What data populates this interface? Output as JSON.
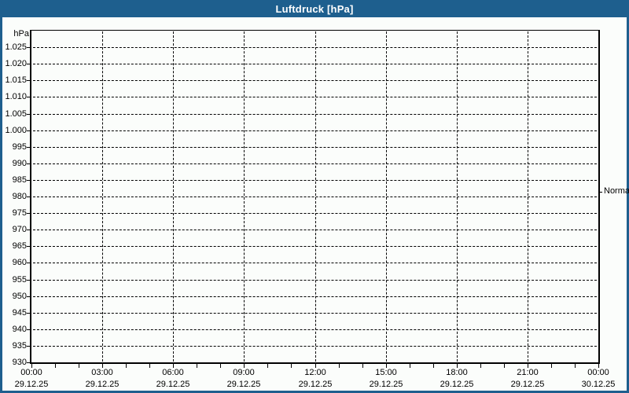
{
  "window": {
    "title": "Luftdruck [hPa]"
  },
  "colors": {
    "titlebar_bg": "#1e5f8e",
    "titlebar_text": "#ffffff",
    "content_bg": "#fbfdfb",
    "axis": "#000000",
    "grid": "#000000",
    "label_text": "#000000"
  },
  "chart_data": {
    "type": "line",
    "title": "Luftdruck [hPa]",
    "y_unit": "hPa",
    "ylim": [
      930,
      1030
    ],
    "ytick_step": 5,
    "grid": "dashed",
    "legend_position": "none",
    "series": [],
    "yticks": [
      {
        "v": 1025,
        "label": "1.025"
      },
      {
        "v": 1020,
        "label": "1.020"
      },
      {
        "v": 1015,
        "label": "1.015"
      },
      {
        "v": 1010,
        "label": "1.010"
      },
      {
        "v": 1005,
        "label": "1.005"
      },
      {
        "v": 1000,
        "label": "1.000"
      },
      {
        "v": 995,
        "label": "995"
      },
      {
        "v": 990,
        "label": "990"
      },
      {
        "v": 985,
        "label": "985"
      },
      {
        "v": 980,
        "label": "980"
      },
      {
        "v": 975,
        "label": "975"
      },
      {
        "v": 970,
        "label": "970"
      },
      {
        "v": 965,
        "label": "965"
      },
      {
        "v": 960,
        "label": "960"
      },
      {
        "v": 955,
        "label": "955"
      },
      {
        "v": 950,
        "label": "950"
      },
      {
        "v": 945,
        "label": "945"
      },
      {
        "v": 940,
        "label": "940"
      },
      {
        "v": 935,
        "label": "935"
      },
      {
        "v": 930,
        "label": "930"
      }
    ],
    "xticks": [
      {
        "time": "00:00",
        "date": "29.12.25"
      },
      {
        "time": "03:00",
        "date": "29.12.25"
      },
      {
        "time": "06:00",
        "date": "29.12.25"
      },
      {
        "time": "09:00",
        "date": "29.12.25"
      },
      {
        "time": "12:00",
        "date": "29.12.25"
      },
      {
        "time": "15:00",
        "date": "29.12.25"
      },
      {
        "time": "18:00",
        "date": "29.12.25"
      },
      {
        "time": "21:00",
        "date": "29.12.25"
      },
      {
        "time": "00:00",
        "date": "30.12.25"
      }
    ],
    "x_range_hours": 24,
    "x_major_tick_hours": 3,
    "x_minor_tick_hours": 1,
    "annotations": [
      {
        "label": "Normal",
        "axis": "y",
        "value": 981.5,
        "side": "right"
      }
    ]
  }
}
